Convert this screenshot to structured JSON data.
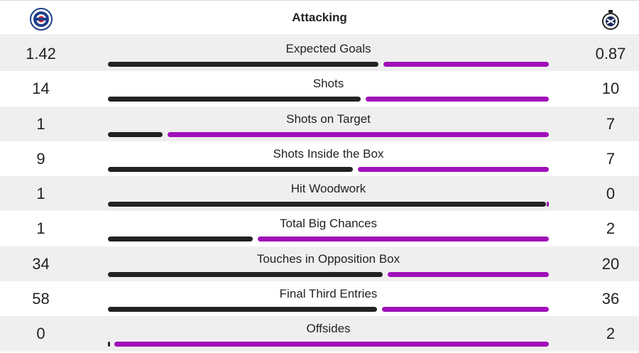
{
  "header": {
    "title": "Attacking",
    "home_crest_icon": "rangers-crest-icon",
    "away_crest_icon": "club-brugge-crest-icon"
  },
  "colors": {
    "home_bar": "#222222",
    "away_bar": "#a010b8",
    "row_shade": "#efefef"
  },
  "stats": [
    {
      "label": "Expected Goals",
      "home": "1.42",
      "away": "0.87",
      "home_share": 0.62
    },
    {
      "label": "Shots",
      "home": "14",
      "away": "10",
      "home_share": 0.58
    },
    {
      "label": "Shots on Target",
      "home": "1",
      "away": "7",
      "home_share": 0.125
    },
    {
      "label": "Shots Inside the Box",
      "home": "9",
      "away": "7",
      "home_share": 0.5625
    },
    {
      "label": "Hit Woodwork",
      "home": "1",
      "away": "0",
      "home_share": 1.0
    },
    {
      "label": "Total Big Chances",
      "home": "1",
      "away": "2",
      "home_share": 0.333
    },
    {
      "label": "Touches in Opposition Box",
      "home": "34",
      "away": "20",
      "home_share": 0.63
    },
    {
      "label": "Final Third Entries",
      "home": "58",
      "away": "36",
      "home_share": 0.617
    },
    {
      "label": "Offsides",
      "home": "0",
      "away": "2",
      "home_share": 0.0
    }
  ]
}
